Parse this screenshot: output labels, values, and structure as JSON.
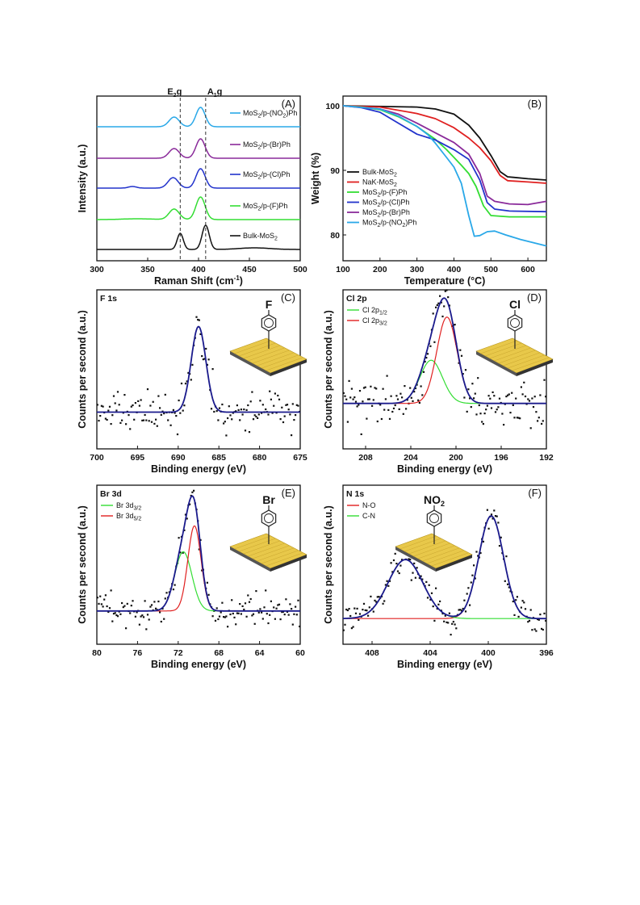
{
  "chart_data": [
    {
      "id": "A",
      "type": "line",
      "panel_label": "(A)",
      "xlabel": "Raman Shift (cm",
      "xlabel_sup": "-1",
      "xlabel_end": ")",
      "ylabel": "Intensity (a.u.)",
      "xlim": [
        300,
        500
      ],
      "xticks": [
        "300",
        "350",
        "400",
        "450",
        "500"
      ],
      "reference_lines": [
        {
          "x": 382,
          "label": "E",
          "sub": "2",
          "tail": "g"
        },
        {
          "x": 407,
          "label": "A",
          "sub": "1",
          "tail": "g"
        }
      ],
      "series": [
        {
          "name": "Bulk-MoS",
          "sub": "2",
          "tail": "",
          "color": "#111111",
          "offset": 0,
          "peaks": [
            [
              382,
              20,
              3
            ],
            [
              407,
              30,
              3.5
            ],
            [
              455,
              2,
              15
            ]
          ]
        },
        {
          "name": "MoS",
          "sub": "2",
          "tail": "/p-(F)Ph",
          "color": "#33dd33",
          "offset": 1,
          "peaks": [
            [
              376,
              13,
              5
            ],
            [
              402,
              28,
              4.5
            ],
            [
              340,
              1,
              15
            ]
          ]
        },
        {
          "name": "MoS",
          "sub": "2",
          "tail": "/p-(Cl)Ph",
          "color": "#2233cc",
          "offset": 2,
          "peaks": [
            [
              375,
              13,
              5
            ],
            [
              402,
              24,
              4.5
            ],
            [
              335,
              2,
              4
            ]
          ]
        },
        {
          "name": "MoS",
          "sub": "2",
          "tail": "/p-(Br)Ph",
          "color": "#8a2a9a",
          "offset": 3,
          "peaks": [
            [
              376,
              12,
              5
            ],
            [
              402,
              24,
              4.5
            ]
          ]
        },
        {
          "name": "MoS",
          "sub": "2",
          "tail": "/p-(NO",
          "sub2": "2",
          "tail2": ")Ph",
          "color": "#2aa8e8",
          "offset": 4,
          "peaks": [
            [
              376,
              12,
              5
            ],
            [
              402,
              24,
              4.5
            ]
          ]
        }
      ]
    },
    {
      "id": "B",
      "type": "line",
      "panel_label": "(B)",
      "xlabel": "Temperature (°C)",
      "ylabel": "Weight (%)",
      "xlim": [
        100,
        650
      ],
      "ylim": [
        76,
        101.5
      ],
      "xticks": [
        100,
        200,
        300,
        400,
        500,
        600
      ],
      "yticks": [
        80,
        90,
        100
      ],
      "series": [
        {
          "name": "Bulk-MoS",
          "sub": "2",
          "tail": "",
          "color": "#111111",
          "points": [
            [
              100,
              100
            ],
            [
              300,
              99.8
            ],
            [
              350,
              99.5
            ],
            [
              400,
              98.7
            ],
            [
              440,
              97
            ],
            [
              470,
              95
            ],
            [
              500,
              92.3
            ],
            [
              525,
              89.8
            ],
            [
              545,
              89
            ],
            [
              600,
              88.7
            ],
            [
              650,
              88.5
            ]
          ]
        },
        {
          "name": "NaK-MoS",
          "sub": "2",
          "tail": "",
          "color": "#e02020",
          "points": [
            [
              100,
              100
            ],
            [
              200,
              99.8
            ],
            [
              300,
              98.8
            ],
            [
              350,
              98
            ],
            [
              400,
              96.6
            ],
            [
              440,
              95
            ],
            [
              470,
              93.5
            ],
            [
              500,
              91.5
            ],
            [
              525,
              89.2
            ],
            [
              545,
              88.4
            ],
            [
              600,
              88.2
            ],
            [
              650,
              88
            ]
          ]
        },
        {
          "name": "MoS",
          "sub": "2",
          "tail": "/p-(F)Ph",
          "color": "#33dd33",
          "points": [
            [
              100,
              100
            ],
            [
              150,
              99.8
            ],
            [
              200,
              99.4
            ],
            [
              250,
              98.3
            ],
            [
              300,
              96.8
            ],
            [
              350,
              94.8
            ],
            [
              380,
              93.2
            ],
            [
              400,
              92
            ],
            [
              420,
              90.8
            ],
            [
              440,
              89.5
            ],
            [
              460,
              87.5
            ],
            [
              480,
              84.5
            ],
            [
              500,
              83
            ],
            [
              550,
              82.8
            ],
            [
              650,
              82.8
            ]
          ]
        },
        {
          "name": "MoS",
          "sub": "2",
          "tail": "/p-(Cl)Ph",
          "color": "#2233cc",
          "points": [
            [
              100,
              100
            ],
            [
              150,
              99.7
            ],
            [
              200,
              99
            ],
            [
              250,
              97.3
            ],
            [
              300,
              95.6
            ],
            [
              350,
              94.7
            ],
            [
              400,
              93.2
            ],
            [
              440,
              91.7
            ],
            [
              470,
              88.5
            ],
            [
              490,
              85
            ],
            [
              510,
              84
            ],
            [
              550,
              83.7
            ],
            [
              650,
              83.6
            ]
          ]
        },
        {
          "name": "MoS",
          "sub": "2",
          "tail": "/p-(Br)Ph",
          "color": "#8a2a9a",
          "points": [
            [
              100,
              100
            ],
            [
              200,
              99.5
            ],
            [
              250,
              98.7
            ],
            [
              300,
              97.3
            ],
            [
              350,
              95.8
            ],
            [
              400,
              94.3
            ],
            [
              440,
              92.5
            ],
            [
              470,
              89.5
            ],
            [
              490,
              86
            ],
            [
              510,
              85.2
            ],
            [
              550,
              84.8
            ],
            [
              600,
              84.7
            ],
            [
              650,
              85.2
            ]
          ]
        },
        {
          "name": "MoS",
          "sub": "2",
          "tail": "/p-(NO",
          "sub2": "2",
          "tail2": ")Ph",
          "color": "#2aa8e8",
          "points": [
            [
              100,
              100
            ],
            [
              200,
              99.5
            ],
            [
              250,
              98.4
            ],
            [
              300,
              96.8
            ],
            [
              330,
              95.5
            ],
            [
              350,
              94.2
            ],
            [
              380,
              92
            ],
            [
              400,
              90.5
            ],
            [
              420,
              88
            ],
            [
              440,
              83
            ],
            [
              455,
              79.8
            ],
            [
              470,
              79.9
            ],
            [
              490,
              80.5
            ],
            [
              510,
              80.6
            ],
            [
              540,
              80
            ],
            [
              580,
              79.3
            ],
            [
              650,
              78.3
            ]
          ]
        }
      ]
    },
    {
      "id": "C",
      "type": "scatter",
      "panel_label": "(C)",
      "corner_label": "F 1s",
      "molecule_label": "F",
      "xlabel": "Binding energy (eV)",
      "ylabel": "Counts per second (a.u.)",
      "xlim": [
        700,
        675
      ],
      "xticks": [
        700,
        695,
        690,
        685,
        680,
        675
      ],
      "baseline": 0,
      "noise": 0.32,
      "seed": 11,
      "ylim": [
        -0.9,
        3.0
      ],
      "fits": [
        {
          "name": "fit",
          "color": "#1a1a8c",
          "peaks": [
            [
              687.5,
              2.1,
              0.9
            ]
          ]
        }
      ]
    },
    {
      "id": "D",
      "type": "scatter",
      "panel_label": "(D)",
      "corner_label": "Cl 2p",
      "molecule_label": "Cl",
      "xlabel": "Binding energy (eV)",
      "ylabel": "Counts per second (a.u.)",
      "xlim": [
        210,
        192
      ],
      "xticks": [
        208,
        204,
        200,
        196,
        192
      ],
      "baseline": 0,
      "noise": 0.35,
      "seed": 23,
      "ylim": [
        -1.0,
        2.5
      ],
      "legend": [
        {
          "name": "Cl 2p",
          "sub": "1/2",
          "color": "#33dd33"
        },
        {
          "name": "Cl 2p",
          "sub": "3/2",
          "color": "#e02020"
        }
      ],
      "fits": [
        {
          "name": "Cl 2p1/2",
          "color": "#33dd33",
          "peaks": [
            [
              202.2,
              0.95,
              1.0
            ]
          ]
        },
        {
          "name": "Cl 2p3/2",
          "color": "#e02020",
          "peaks": [
            [
              200.8,
              1.9,
              0.9
            ]
          ]
        },
        {
          "name": "fit",
          "color": "#1a1a8c",
          "peaks": [
            [
              202.2,
              0.95,
              1.0
            ],
            [
              200.8,
              1.9,
              0.9
            ]
          ]
        }
      ]
    },
    {
      "id": "E",
      "type": "scatter",
      "panel_label": "(E)",
      "corner_label": "Br 3d",
      "molecule_label": "Br",
      "xlabel": "Binding energy (eV)",
      "ylabel": "Counts per second (a.u.)",
      "xlim": [
        80,
        60
      ],
      "xticks": [
        80,
        76,
        72,
        68,
        64,
        60
      ],
      "baseline": 0,
      "noise": 0.28,
      "seed": 37,
      "ylim": [
        -0.9,
        3.4
      ],
      "legend": [
        {
          "name": "Br 3d",
          "sub": "3/2",
          "color": "#33dd33"
        },
        {
          "name": "Br 3d",
          "sub": "5/2",
          "color": "#e02020"
        }
      ],
      "fits": [
        {
          "name": "Br 3d3/2",
          "color": "#33dd33",
          "peaks": [
            [
              71.5,
              1.6,
              0.85
            ]
          ]
        },
        {
          "name": "Br 3d5/2",
          "color": "#e02020",
          "peaks": [
            [
              70.4,
              2.3,
              0.65
            ]
          ]
        },
        {
          "name": "fit",
          "color": "#1a1a8c",
          "peaks": [
            [
              71.5,
              1.6,
              0.85
            ],
            [
              70.4,
              2.3,
              0.65
            ]
          ]
        }
      ]
    },
    {
      "id": "F",
      "type": "scatter",
      "panel_label": "(F)",
      "corner_label": "N 1s",
      "molecule_label": "NO",
      "molecule_sub": "2",
      "xlabel": "Binding energy (eV)",
      "ylabel": "Counts per second (a.u.)",
      "xlim": [
        410,
        396
      ],
      "xticks": [
        408,
        404,
        400,
        396
      ],
      "baseline": 0,
      "noise": 0.18,
      "seed": 51,
      "ylim": [
        -0.5,
        2.6
      ],
      "legend": [
        {
          "name": "N-O",
          "color": "#e02020"
        },
        {
          "name": "C-N",
          "color": "#33dd33"
        }
      ],
      "fits": [
        {
          "name": "N-O",
          "color": "#e02020",
          "peaks": [
            [
              399.8,
              2.0,
              0.85
            ]
          ]
        },
        {
          "name": "C-N",
          "color": "#33dd33",
          "peaks": [
            [
              405.7,
              1.15,
              1.2
            ]
          ]
        },
        {
          "name": "fit",
          "color": "#1a1a8c",
          "peaks": [
            [
              399.8,
              2.0,
              0.85
            ],
            [
              405.7,
              1.15,
              1.2
            ]
          ]
        }
      ]
    }
  ]
}
